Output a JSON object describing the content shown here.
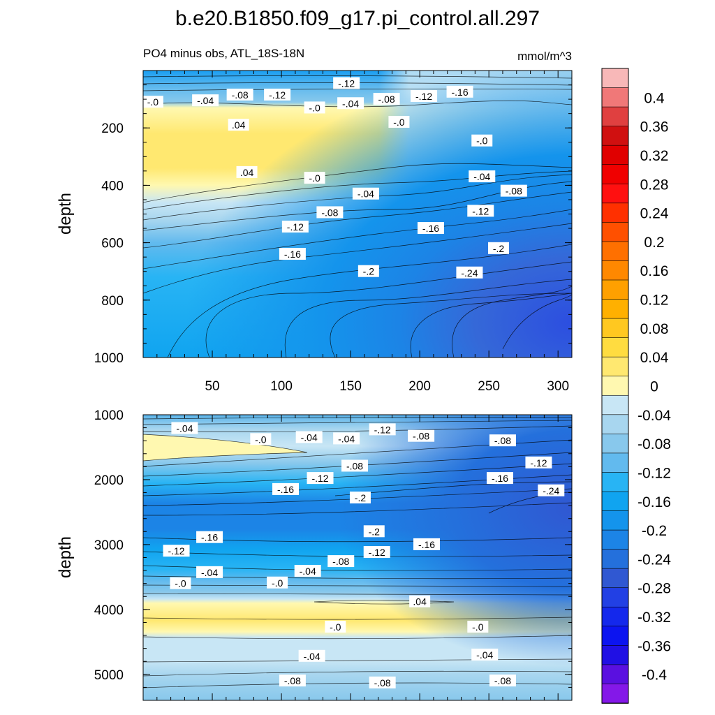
{
  "chart_data": [
    {
      "type": "heatmap",
      "panel": "upper",
      "title": "b.e20.B1850.f09_g17.pi_control.all.297",
      "subtitle_left": "PO4 minus obs, ATL_18S-18N",
      "subtitle_right": "mmol/m^3",
      "ylabel": "depth",
      "xlabel": "",
      "xlim": [
        0,
        310
      ],
      "ylim": [
        0,
        1000
      ],
      "y_inverted": true,
      "xticks": [
        "50",
        "100",
        "150",
        "200",
        "250",
        "300"
      ],
      "yticks": [
        "200",
        "400",
        "600",
        "800",
        "1000"
      ],
      "region_values": [
        {
          "depth_range": [
            0,
            120
          ],
          "value": -0.12
        },
        {
          "depth_range": [
            150,
            350
          ],
          "value": 0.04
        },
        {
          "depth_range": [
            450,
            550
          ],
          "value": -0.08
        },
        {
          "depth_range": [
            700,
            1000
          ],
          "value": -0.24
        }
      ],
      "contour_labels": [
        {
          "text": "-.12",
          "x": 147,
          "y": 45
        },
        {
          "text": "-.0",
          "x": 7,
          "y": 110
        },
        {
          "text": "-.04",
          "x": 45,
          "y": 105
        },
        {
          "text": "-.08",
          "x": 70,
          "y": 85
        },
        {
          "text": "-.12",
          "x": 97,
          "y": 85
        },
        {
          "text": "-.0",
          "x": 124,
          "y": 130
        },
        {
          "text": "-.04",
          "x": 150,
          "y": 115
        },
        {
          "text": "-.08",
          "x": 176,
          "y": 100
        },
        {
          "text": "-.12",
          "x": 203,
          "y": 90
        },
        {
          "text": "-.16",
          "x": 229,
          "y": 75
        },
        {
          "text": ".04",
          "x": 69,
          "y": 190
        },
        {
          "text": "-.0",
          "x": 185,
          "y": 180
        },
        {
          "text": "-.0",
          "x": 245,
          "y": 245
        },
        {
          "text": ".04",
          "x": 75,
          "y": 355
        },
        {
          "text": "-.0",
          "x": 124,
          "y": 375
        },
        {
          "text": "-.04",
          "x": 161,
          "y": 430
        },
        {
          "text": "-.04",
          "x": 245,
          "y": 370
        },
        {
          "text": "-.08",
          "x": 268,
          "y": 420
        },
        {
          "text": "-.08",
          "x": 135,
          "y": 495
        },
        {
          "text": "-.12",
          "x": 110,
          "y": 545
        },
        {
          "text": "-.12",
          "x": 244,
          "y": 490
        },
        {
          "text": "-.16",
          "x": 208,
          "y": 550
        },
        {
          "text": "-.16",
          "x": 108,
          "y": 640
        },
        {
          "text": "-.2",
          "x": 257,
          "y": 620
        },
        {
          "text": "-.2",
          "x": 163,
          "y": 700
        },
        {
          "text": "-.24",
          "x": 236,
          "y": 705
        }
      ]
    },
    {
      "type": "heatmap",
      "panel": "lower",
      "ylabel": "depth",
      "xlabel": "",
      "xlim": [
        0,
        310
      ],
      "ylim": [
        1000,
        5400
      ],
      "y_inverted": true,
      "yticks": [
        "1000",
        "2000",
        "3000",
        "4000",
        "5000"
      ],
      "region_values": [
        {
          "depth_range": [
            1300,
            1700
          ],
          "value": 0.0
        },
        {
          "depth_range": [
            2200,
            2700
          ],
          "value": -0.24
        },
        {
          "depth_range": [
            3700,
            4100
          ],
          "value": 0.04
        },
        {
          "depth_range": [
            4800,
            5300
          ],
          "value": -0.08
        }
      ],
      "contour_labels": [
        {
          "text": "-.04",
          "x": 30,
          "y": 1210
        },
        {
          "text": "-.0",
          "x": 85,
          "y": 1380
        },
        {
          "text": "-.04",
          "x": 120,
          "y": 1350
        },
        {
          "text": "-.04",
          "x": 147,
          "y": 1370
        },
        {
          "text": "-.12",
          "x": 173,
          "y": 1230
        },
        {
          "text": "-.08",
          "x": 201,
          "y": 1330
        },
        {
          "text": "-.08",
          "x": 260,
          "y": 1400
        },
        {
          "text": "-.08",
          "x": 153,
          "y": 1790
        },
        {
          "text": "-.12",
          "x": 128,
          "y": 1980
        },
        {
          "text": "-.12",
          "x": 286,
          "y": 1740
        },
        {
          "text": "-.16",
          "x": 103,
          "y": 2150
        },
        {
          "text": "-.16",
          "x": 258,
          "y": 1980
        },
        {
          "text": "-.24",
          "x": 295,
          "y": 2170
        },
        {
          "text": "-.2",
          "x": 157,
          "y": 2280
        },
        {
          "text": "-.2",
          "x": 167,
          "y": 2800
        },
        {
          "text": "-.16",
          "x": 48,
          "y": 2890
        },
        {
          "text": "-.12",
          "x": 24,
          "y": 3100
        },
        {
          "text": "-.16",
          "x": 205,
          "y": 3000
        },
        {
          "text": "-.12",
          "x": 169,
          "y": 3120
        },
        {
          "text": "-.08",
          "x": 143,
          "y": 3260
        },
        {
          "text": "-.04",
          "x": 48,
          "y": 3430
        },
        {
          "text": "-.04",
          "x": 119,
          "y": 3410
        },
        {
          "text": "-.0",
          "x": 27,
          "y": 3600
        },
        {
          "text": "-.0",
          "x": 97,
          "y": 3590
        },
        {
          "text": ".04",
          "x": 200,
          "y": 3880
        },
        {
          "text": "-.0",
          "x": 139,
          "y": 4270
        },
        {
          "text": "-.0",
          "x": 242,
          "y": 4270
        },
        {
          "text": "-.04",
          "x": 122,
          "y": 4720
        },
        {
          "text": "-.04",
          "x": 247,
          "y": 4700
        },
        {
          "text": "-.08",
          "x": 108,
          "y": 5100
        },
        {
          "text": "-.08",
          "x": 173,
          "y": 5130
        },
        {
          "text": "-.08",
          "x": 260,
          "y": 5100
        }
      ]
    }
  ],
  "colorbar": {
    "labels": [
      "0.4",
      "0.36",
      "0.32",
      "0.28",
      "0.24",
      "0.2",
      "0.16",
      "0.12",
      "0.08",
      "0.04",
      "0",
      "-0.04",
      "-0.08",
      "-0.12",
      "-0.16",
      "-0.2",
      "-0.24",
      "-0.28",
      "-0.32",
      "-0.36",
      "-0.4"
    ],
    "colors": [
      "#f8b8b8",
      "#f07878",
      "#e04040",
      "#d01010",
      "#e00000",
      "#f00000",
      "#ff1010",
      "#ff3000",
      "#ff5000",
      "#ff7000",
      "#ff8800",
      "#ffa000",
      "#ffb000",
      "#ffc820",
      "#ffdc40",
      "#ffe870",
      "#fff8b0",
      "#c8e6f5",
      "#a8d6ef",
      "#88c8ec",
      "#62baee",
      "#28b4f4",
      "#10a4f0",
      "#1494ec",
      "#1c84e6",
      "#2470dc",
      "#3058d2",
      "#2240e4",
      "#1428ec",
      "#0c14f0",
      "#2010e4",
      "#5a10e0",
      "#8418e8"
    ]
  }
}
